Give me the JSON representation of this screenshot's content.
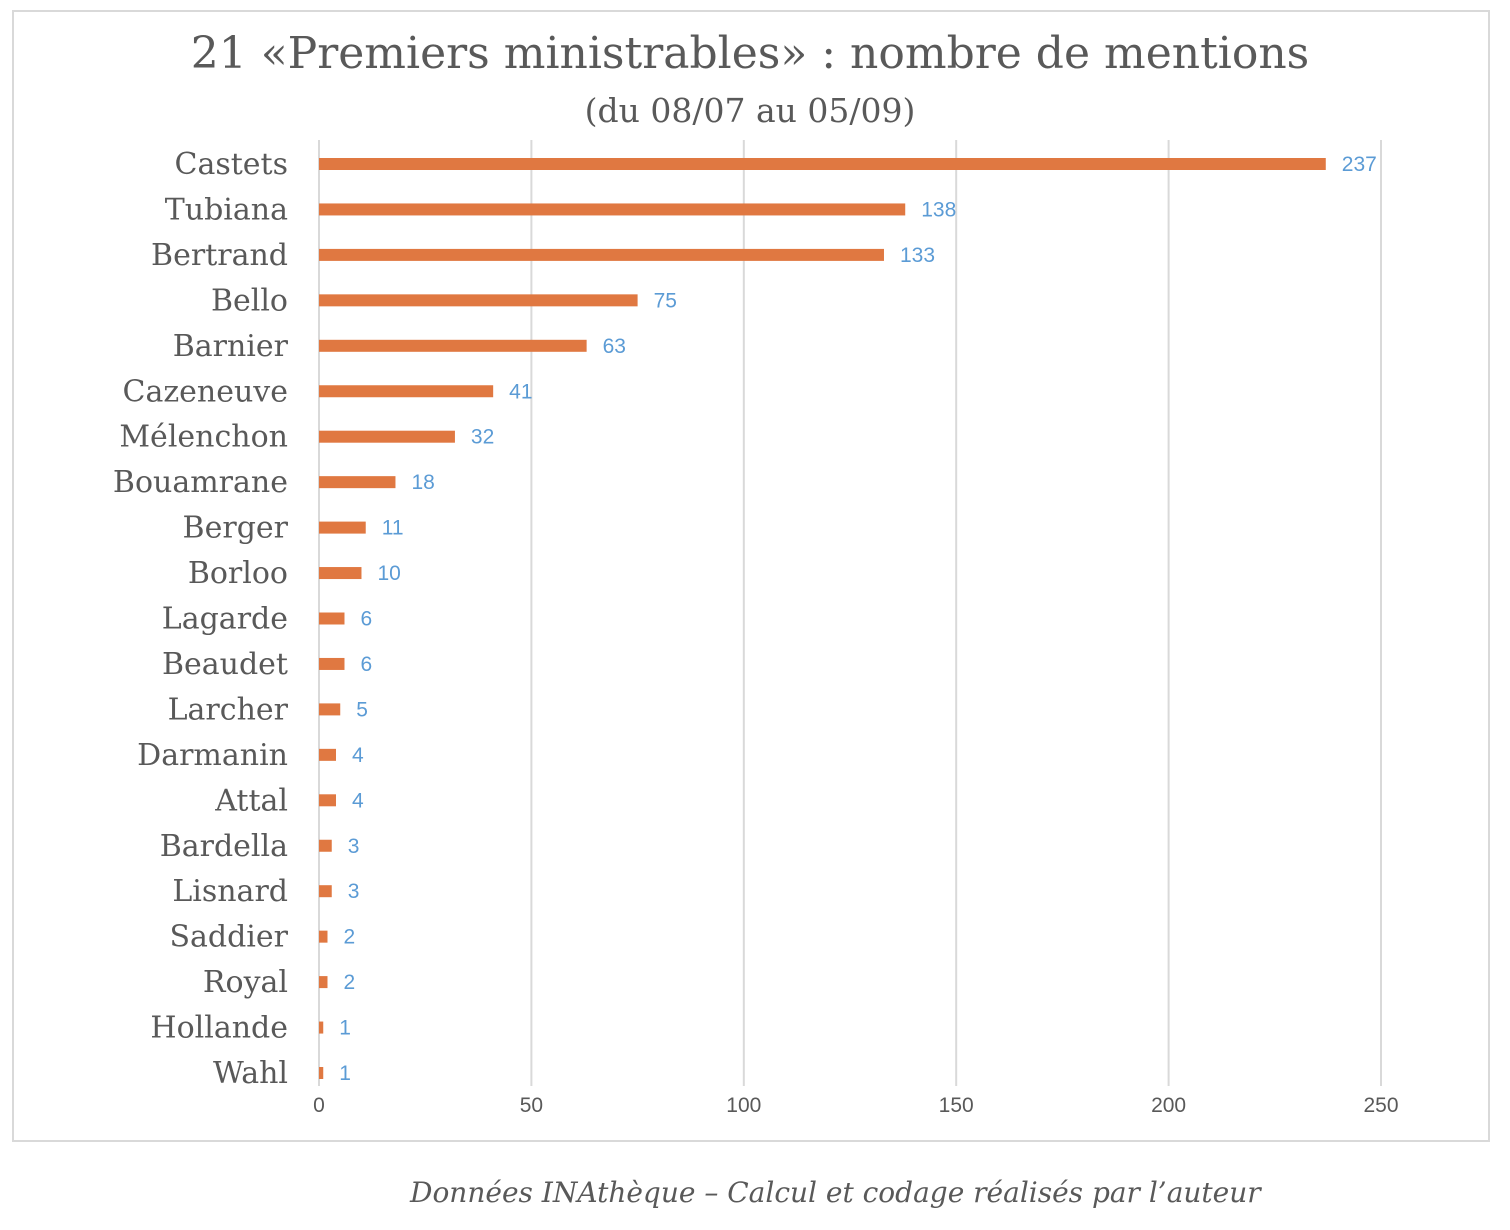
{
  "chart_data": {
    "type": "bar",
    "orientation": "horizontal",
    "title": "21 «Premiers ministrables» : nombre de mentions",
    "subtitle": "(du 08/07 au 05/09)",
    "categories": [
      "Castets",
      "Tubiana",
      "Bertrand",
      "Bello",
      "Barnier",
      "Cazeneuve",
      "Mélenchon",
      "Bouamrane",
      "Berger",
      "Borloo",
      "Lagarde",
      "Beaudet",
      "Larcher",
      "Darmanin",
      "Attal",
      "Bardella",
      "Lisnard",
      "Saddier",
      "Royal",
      "Hollande",
      "Wahl"
    ],
    "values": [
      237,
      138,
      133,
      75,
      63,
      41,
      32,
      18,
      11,
      10,
      6,
      6,
      5,
      4,
      4,
      3,
      3,
      2,
      2,
      1,
      1
    ],
    "xlim": [
      0,
      250
    ],
    "x_ticks": [
      0,
      50,
      100,
      150,
      200,
      250
    ],
    "grid": true,
    "legend": "none",
    "data_labels": true,
    "colors": {
      "bar": "#e07841",
      "data_label": "#5b9bd5",
      "gridline": "#d9d9d9",
      "text": "#595959"
    }
  },
  "caption": "Données INAthèque – Calcul et codage réalisés par l’auteur"
}
